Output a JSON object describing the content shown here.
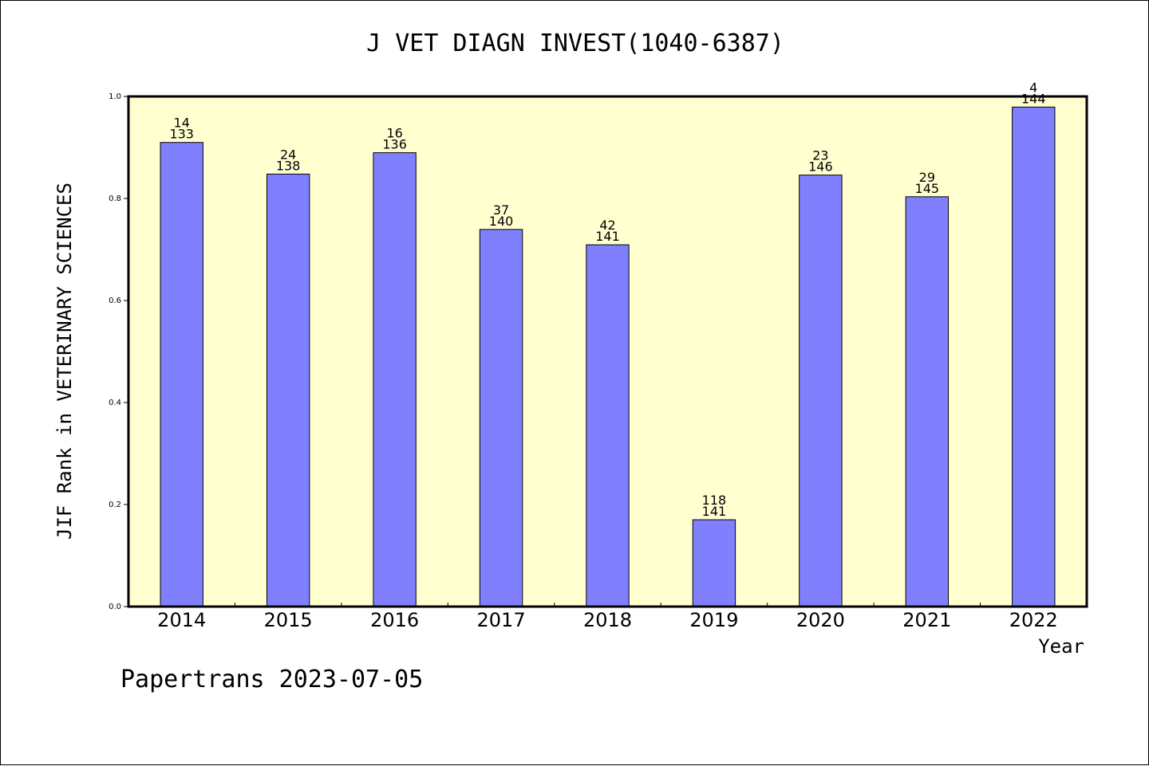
{
  "chart_data": {
    "type": "bar",
    "title": "J VET DIAGN INVEST(1040-6387)",
    "xlabel": "Year",
    "ylabel": "JIF Rank in VETERINARY SCIENCES",
    "categories": [
      "2014",
      "2015",
      "2016",
      "2017",
      "2018",
      "2019",
      "2020",
      "2021",
      "2022"
    ],
    "values": [
      0.9098,
      0.8478,
      0.8897,
      0.7393,
      0.7092,
      0.1702,
      0.8459,
      0.8034,
      0.9792
    ],
    "rank_labels": [
      [
        "14",
        "133"
      ],
      [
        "24",
        "138"
      ],
      [
        "16",
        "136"
      ],
      [
        "37",
        "140"
      ],
      [
        "42",
        "141"
      ],
      [
        "118",
        "141"
      ],
      [
        "23",
        "146"
      ],
      [
        "29",
        "145"
      ],
      [
        "4",
        "144"
      ]
    ],
    "ylim": [
      0,
      1.0
    ],
    "yticks": [
      "0.0",
      "0.2",
      "0.4",
      "0.6",
      "0.8",
      "1.0"
    ],
    "bar_color": "#8080ff",
    "plot_background": "#ffffd0",
    "grid": false
  },
  "footer": "Papertrans 2023-07-05"
}
